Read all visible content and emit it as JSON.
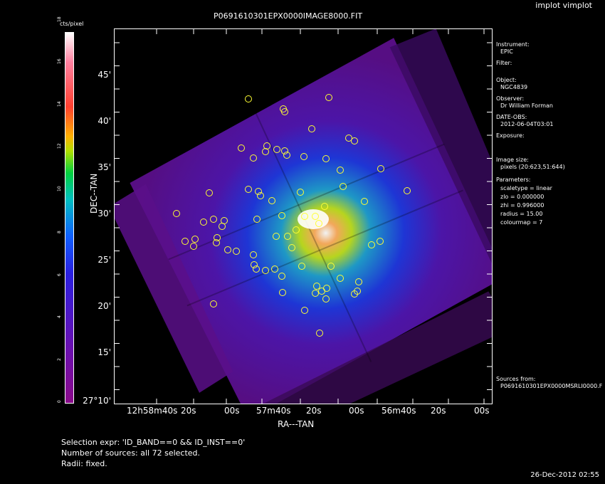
{
  "app_title": "implot vimplot",
  "plot_title": "P0691610301EPX0000IMAGE8000.FIT",
  "colorbar": {
    "label": "cts/pixel",
    "ticks": [
      "0",
      "2",
      "4",
      "6",
      "8",
      "10",
      "12",
      "14",
      "16",
      "18"
    ]
  },
  "axes": {
    "xlabel": "RA---TAN",
    "ylabel": "DEC--TAN",
    "ra_ticks": [
      "12h58m40s",
      "20s",
      "00s",
      "57m40s",
      "20s",
      "00s",
      "56m40s",
      "20s",
      "00s"
    ],
    "dec_ticks": [
      "45'",
      "40'",
      "35'",
      "30'",
      "25'",
      "20'",
      "15'",
      "27°10'"
    ]
  },
  "info": {
    "instrument_label": "Instrument:",
    "instrument": "EPIC",
    "filter_label": "Filter:",
    "object_label": "Object:",
    "object": "NGC4839",
    "observer_label": "Observer:",
    "observer": "Dr William Forman",
    "date_label": "DATE-OBS:",
    "date": "2012-06-04T03:01",
    "exposure_label": "Exposure:",
    "image_size_label": "Image size:",
    "image_size": "pixels (20:623,51:644)",
    "parameters_label": "Parameters:",
    "p1": "scaletype = linear",
    "p2": "zlo = 0.000000",
    "p3": "zhi = 0.996000",
    "p4": "radius = 15.00",
    "p5": "colourmap = 7",
    "sources_label": "Sources from:",
    "sources": "P0691610301EPX0000MSRLI0000.F"
  },
  "bottom": {
    "line1": "Selection expr: 'ID_BAND==0 && ID_INST==0'",
    "line2": "Number of sources: all 72 selected.",
    "line3": "Radii: fixed."
  },
  "timestamp": "26-Dec-2012 02:55",
  "colors": {
    "source_circle": "#ffff33",
    "frame": "#ffffff"
  }
}
